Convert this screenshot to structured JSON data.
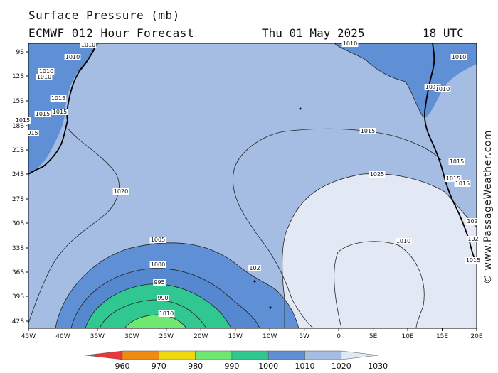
{
  "header": {
    "title": "Surface Pressure (mb)",
    "model": "ECMWF 012 Hour Forecast",
    "date": "Thu 01 May 2025",
    "time": "18 UTC"
  },
  "copyright": "© www.PassageWeather.com",
  "axes": {
    "lat_ticks": [
      "9S",
      "12S",
      "15S",
      "18S",
      "21S",
      "24S",
      "27S",
      "30S",
      "33S",
      "36S",
      "39S",
      "42S"
    ],
    "lon_ticks": [
      "45W",
      "40W",
      "35W",
      "30W",
      "25W",
      "20W",
      "15W",
      "10W",
      "5W",
      "0",
      "5E",
      "10E",
      "15E",
      "20E"
    ]
  },
  "contours": {
    "labels": [
      "1010",
      "1010",
      "1010",
      "1010",
      "1010",
      "1015",
      "1015",
      "1015",
      "1015",
      "015",
      "1010",
      "1010",
      "1010",
      "1015",
      "1015",
      "1015",
      "1015",
      "1020",
      "1025",
      "1010",
      "1005",
      "1000",
      "995",
      "990",
      "1010",
      "102",
      "102",
      "102",
      "1015"
    ]
  },
  "legend": {
    "values": [
      "960",
      "970",
      "980",
      "990",
      "1000",
      "1010",
      "1020",
      "1030"
    ],
    "colors": [
      "#e8383a",
      "#f08a10",
      "#f0d810",
      "#6ee870",
      "#30c890",
      "#5f8fd4",
      "#a5bde2",
      "#dfe8f5"
    ]
  },
  "colors": {
    "band_1005_1010": "#5f8fd4",
    "band_1010_1015": "#a5bde2",
    "band_1015_1020": "#a8bfe3",
    "band_1020_1025": "#e2e9f5",
    "band_995_1000": "#30c890",
    "band_990_995": "#6ee870",
    "band_1000_1005": "#5f8fd4"
  }
}
